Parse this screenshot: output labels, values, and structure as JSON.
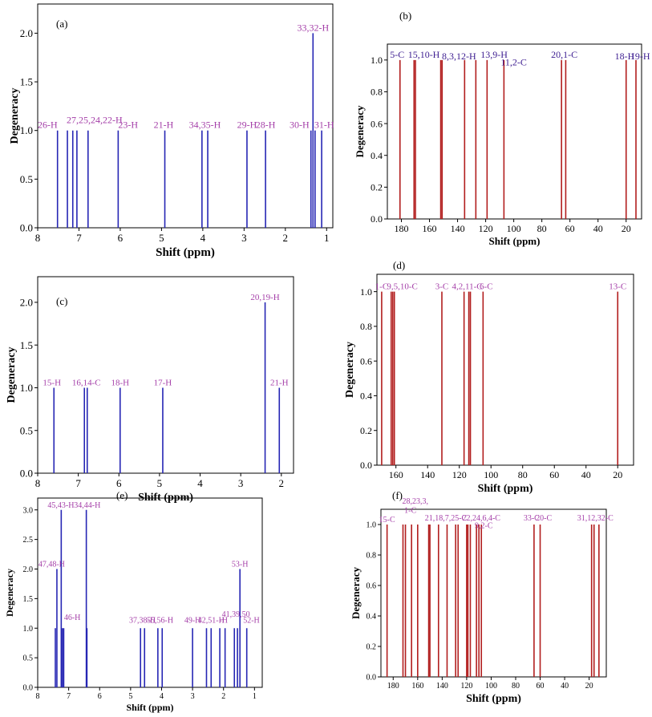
{
  "colors": {
    "blue": "#2626b4",
    "red": "#b21e1e",
    "label": "#a43ea8",
    "label_dark": "#3c1c90",
    "axis": "#000000"
  },
  "chart_data": [
    {
      "id": "a",
      "panel_label": "(a)",
      "type": "stick",
      "xlabel": "Shift (ppm)",
      "ylabel": "Degeneracy",
      "xlim": [
        8,
        0.85
      ],
      "ylim": [
        0,
        2.3
      ],
      "xticks": [
        8,
        7,
        6,
        5,
        4,
        3,
        2,
        1
      ],
      "yticks": [
        0.0,
        0.5,
        1.0,
        1.5,
        2.0
      ],
      "ytick_labels": [
        "0.0",
        "0.5",
        "1.0",
        "1.5",
        "2.0"
      ],
      "color": "blue",
      "label_color": "label",
      "peaks": [
        7.52,
        7.28,
        7.15,
        7.05,
        6.78,
        6.05,
        4.92,
        4.02,
        3.88,
        2.93,
        2.48,
        1.38,
        1.33,
        1.28,
        1.12
      ],
      "heights": [
        1,
        1,
        1,
        1,
        1,
        1,
        1,
        1,
        1,
        1,
        1,
        1,
        2,
        1,
        1
      ],
      "annotations": [
        {
          "text": "26-H",
          "x": 7.52,
          "y": 1.0,
          "anchor": "end"
        },
        {
          "text": "27,25,24,22-H",
          "x": 7.3,
          "y": 1.05,
          "anchor": "start"
        },
        {
          "text": "23-H",
          "x": 6.05,
          "y": 1.0,
          "anchor": "start"
        },
        {
          "text": "21-H",
          "x": 4.95,
          "y": 1.0,
          "anchor": "middle"
        },
        {
          "text": "34,35-H",
          "x": 3.95,
          "y": 1.0,
          "anchor": "middle"
        },
        {
          "text": "29-H",
          "x": 2.93,
          "y": 1.0,
          "anchor": "middle"
        },
        {
          "text": "28-H",
          "x": 2.48,
          "y": 1.0,
          "anchor": "middle"
        },
        {
          "text": "30-H",
          "x": 1.42,
          "y": 1.0,
          "anchor": "end"
        },
        {
          "text": "31-H",
          "x": 1.06,
          "y": 1.0,
          "anchor": "middle"
        },
        {
          "text": "33,32-H",
          "x": 1.33,
          "y": 2.0,
          "anchor": "middle"
        }
      ]
    },
    {
      "id": "b",
      "panel_label": "(b)",
      "type": "stick",
      "xlabel": "Shift (ppm)",
      "ylabel": "Degeneracy",
      "xlim": [
        190,
        9
      ],
      "ylim": [
        0,
        1.1
      ],
      "xticks": [
        180,
        160,
        140,
        120,
        100,
        80,
        60,
        40,
        20
      ],
      "yticks": [
        0.0,
        0.2,
        0.4,
        0.6,
        0.8,
        1.0
      ],
      "ytick_labels": [
        "0.0",
        "0.2",
        "0.4",
        "0.6",
        "0.8",
        "1.0"
      ],
      "color": "red",
      "label_color": "label_dark",
      "peaks": [
        181,
        171,
        170,
        152,
        151,
        135,
        127,
        119,
        107,
        66,
        63,
        20,
        13
      ],
      "heights": [
        1,
        1,
        1,
        1,
        1,
        1,
        1,
        1,
        1,
        1,
        1,
        1,
        1
      ],
      "annotations": [
        {
          "text": "5-C",
          "x": 183,
          "y": 1.0,
          "anchor": "middle"
        },
        {
          "text": "15,10-H",
          "x": 164,
          "y": 1.0,
          "anchor": "middle"
        },
        {
          "text": "8,3,12-H",
          "x": 139,
          "y": 0.99,
          "anchor": "middle"
        },
        {
          "text": "13,9-H",
          "x": 114,
          "y": 1.0,
          "anchor": "middle"
        },
        {
          "text": "11,2-C",
          "x": 100,
          "y": 0.95,
          "anchor": "middle"
        },
        {
          "text": "20,1-C",
          "x": 64,
          "y": 1.0,
          "anchor": "middle"
        },
        {
          "text": "18-H",
          "x": 21,
          "y": 0.99,
          "anchor": "middle"
        },
        {
          "text": "19-H",
          "x": 10,
          "y": 0.99,
          "anchor": "middle"
        }
      ]
    },
    {
      "id": "c",
      "panel_label": "(c)",
      "type": "stick",
      "xlabel": "Shift (ppm)",
      "ylabel": "Degeneracy",
      "xlim": [
        8,
        1.7
      ],
      "ylim": [
        0,
        2.3
      ],
      "xticks": [
        8,
        7,
        6,
        5,
        4,
        3,
        2
      ],
      "yticks": [
        0.0,
        0.5,
        1.0,
        1.5,
        2.0
      ],
      "ytick_labels": [
        "0.0",
        "0.5",
        "1.0",
        "1.5",
        "2.0"
      ],
      "color": "blue",
      "label_color": "label",
      "peaks": [
        7.6,
        6.85,
        6.78,
        5.97,
        4.92,
        2.4,
        2.05
      ],
      "heights": [
        1,
        1,
        1,
        1,
        1,
        2,
        1
      ],
      "annotations": [
        {
          "text": "15-H",
          "x": 7.65,
          "y": 1.0,
          "anchor": "middle"
        },
        {
          "text": "16,14-C",
          "x": 6.8,
          "y": 1.0,
          "anchor": "middle"
        },
        {
          "text": "18-H",
          "x": 5.97,
          "y": 1.0,
          "anchor": "middle"
        },
        {
          "text": "17-H",
          "x": 4.92,
          "y": 1.0,
          "anchor": "middle"
        },
        {
          "text": "20,19-H",
          "x": 2.4,
          "y": 2.0,
          "anchor": "middle"
        },
        {
          "text": "21-H",
          "x": 2.05,
          "y": 1.0,
          "anchor": "middle"
        }
      ]
    },
    {
      "id": "d",
      "panel_label": "(d)",
      "type": "stick",
      "xlabel": "Shift (ppm)",
      "ylabel": "Degeneracy",
      "xlim": [
        172,
        10
      ],
      "ylim": [
        0,
        1.1
      ],
      "xticks": [
        160,
        140,
        120,
        100,
        80,
        60,
        40,
        20
      ],
      "yticks": [
        0.0,
        0.2,
        0.4,
        0.6,
        0.8,
        1.0
      ],
      "ytick_labels": [
        "0.0",
        "0.2",
        "0.4",
        "0.6",
        "0.8",
        "1.0"
      ],
      "color": "red",
      "label_color": "label",
      "peaks": [
        169,
        163,
        162,
        161,
        131,
        117,
        114,
        113,
        105,
        20
      ],
      "heights": [
        1,
        1,
        1,
        1,
        1,
        1,
        1,
        1,
        1,
        1
      ],
      "annotations": [
        {
          "text": "1-C",
          "x": 169,
          "y": 1.0,
          "anchor": "middle"
        },
        {
          "text": "9,5,10-C",
          "x": 156,
          "y": 1.0,
          "anchor": "middle"
        },
        {
          "text": "3-C",
          "x": 131,
          "y": 1.0,
          "anchor": "middle"
        },
        {
          "text": "4,2,11-C",
          "x": 115,
          "y": 1.0,
          "anchor": "middle"
        },
        {
          "text": "6-C",
          "x": 103,
          "y": 1.0,
          "anchor": "middle"
        },
        {
          "text": "13-C",
          "x": 20,
          "y": 1.0,
          "anchor": "middle"
        }
      ]
    },
    {
      "id": "e",
      "panel_label": "(e)",
      "type": "stick",
      "xlabel": "Shift (ppm)",
      "ylabel": "Degeneracy",
      "xlim": [
        8,
        0.75
      ],
      "ylim": [
        0,
        3.2
      ],
      "xticks": [
        8,
        7,
        6,
        5,
        4,
        3,
        2,
        1
      ],
      "yticks": [
        0.0,
        0.5,
        1.0,
        1.5,
        2.0,
        2.5,
        3.0
      ],
      "ytick_labels": [
        "0.0",
        "0.5",
        "1.0",
        "1.5",
        "2.0",
        "2.5",
        "3.0"
      ],
      "color": "blue",
      "label_color": "label",
      "peaks": [
        7.43,
        7.38,
        7.24,
        7.2,
        7.16,
        6.43,
        6.41,
        4.68,
        4.55,
        4.12,
        3.98,
        3.0,
        2.55,
        2.4,
        2.12,
        1.95,
        1.65,
        1.55,
        1.47,
        1.25
      ],
      "heights": [
        1,
        2,
        3,
        1,
        1,
        3,
        1,
        1,
        1,
        1,
        1,
        1,
        1,
        1,
        1,
        1,
        1,
        1,
        2,
        1
      ],
      "annotations": [
        {
          "text": "47,48-H",
          "x": 7.55,
          "y": 2.0,
          "anchor": "middle"
        },
        {
          "text": "45,43-H",
          "x": 7.25,
          "y": 3.0,
          "anchor": "middle"
        },
        {
          "text": "46-H",
          "x": 7.15,
          "y": 1.1,
          "anchor": "start"
        },
        {
          "text": "34,44-H",
          "x": 6.4,
          "y": 3.0,
          "anchor": "middle"
        },
        {
          "text": "37,38-H",
          "x": 4.62,
          "y": 1.05,
          "anchor": "middle"
        },
        {
          "text": "55,56-H",
          "x": 4.05,
          "y": 1.05,
          "anchor": "middle"
        },
        {
          "text": "49-H",
          "x": 3.0,
          "y": 1.05,
          "anchor": "middle"
        },
        {
          "text": "42,51-H",
          "x": 2.4,
          "y": 1.05,
          "anchor": "middle"
        },
        {
          "text": "-H",
          "x": 2.0,
          "y": 1.05,
          "anchor": "middle"
        },
        {
          "text": "41,39,50",
          "x": 1.6,
          "y": 1.15,
          "anchor": "middle"
        },
        {
          "text": "53-H",
          "x": 1.47,
          "y": 2.0,
          "anchor": "middle"
        },
        {
          "text": "52-H",
          "x": 1.1,
          "y": 1.05,
          "anchor": "middle"
        }
      ]
    },
    {
      "id": "f",
      "panel_label": "(f)",
      "type": "stick",
      "xlabel": "Shift (ppm)",
      "ylabel": "Degeneracy",
      "xlim": [
        190,
        6
      ],
      "ylim": [
        0,
        1.1
      ],
      "xticks": [
        180,
        160,
        140,
        120,
        100,
        80,
        60,
        40,
        20
      ],
      "yticks": [
        0.0,
        0.2,
        0.4,
        0.6,
        0.8,
        1.0
      ],
      "ytick_labels": [
        "0.0",
        "0.2",
        "0.4",
        "0.6",
        "0.8",
        "1.0"
      ],
      "color": "red",
      "label_color": "label",
      "peaks": [
        185,
        172,
        170,
        165,
        160,
        151,
        150,
        143,
        136,
        129,
        127,
        120,
        119,
        117,
        112,
        110,
        108,
        65,
        60,
        18,
        16,
        12
      ],
      "heights": [
        1,
        1,
        1,
        1,
        1,
        1,
        1,
        1,
        1,
        1,
        1,
        1,
        1,
        1,
        1,
        1,
        1,
        1,
        1,
        1,
        1,
        1
      ],
      "annotations": [
        {
          "text": "15-C",
          "x": 185,
          "y": 1.0,
          "anchor": "middle"
        },
        {
          "text": "28,23,3,",
          "x": 162,
          "y": 1.12,
          "anchor": "middle"
        },
        {
          "text": "1-C",
          "x": 166,
          "y": 1.06,
          "anchor": "middle"
        },
        {
          "text": "21,18,7,25-C",
          "x": 137,
          "y": 1.01,
          "anchor": "middle"
        },
        {
          "text": "22,24,6,4-C",
          "x": 108,
          "y": 1.01,
          "anchor": "middle"
        },
        {
          "text": "9,2-C",
          "x": 106,
          "y": 0.96,
          "anchor": "middle"
        },
        {
          "text": "33-C",
          "x": 67,
          "y": 1.01,
          "anchor": "middle"
        },
        {
          "text": "20-C",
          "x": 57,
          "y": 1.01,
          "anchor": "middle"
        },
        {
          "text": "31,12,32-C",
          "x": 15,
          "y": 1.01,
          "anchor": "middle"
        }
      ]
    }
  ]
}
